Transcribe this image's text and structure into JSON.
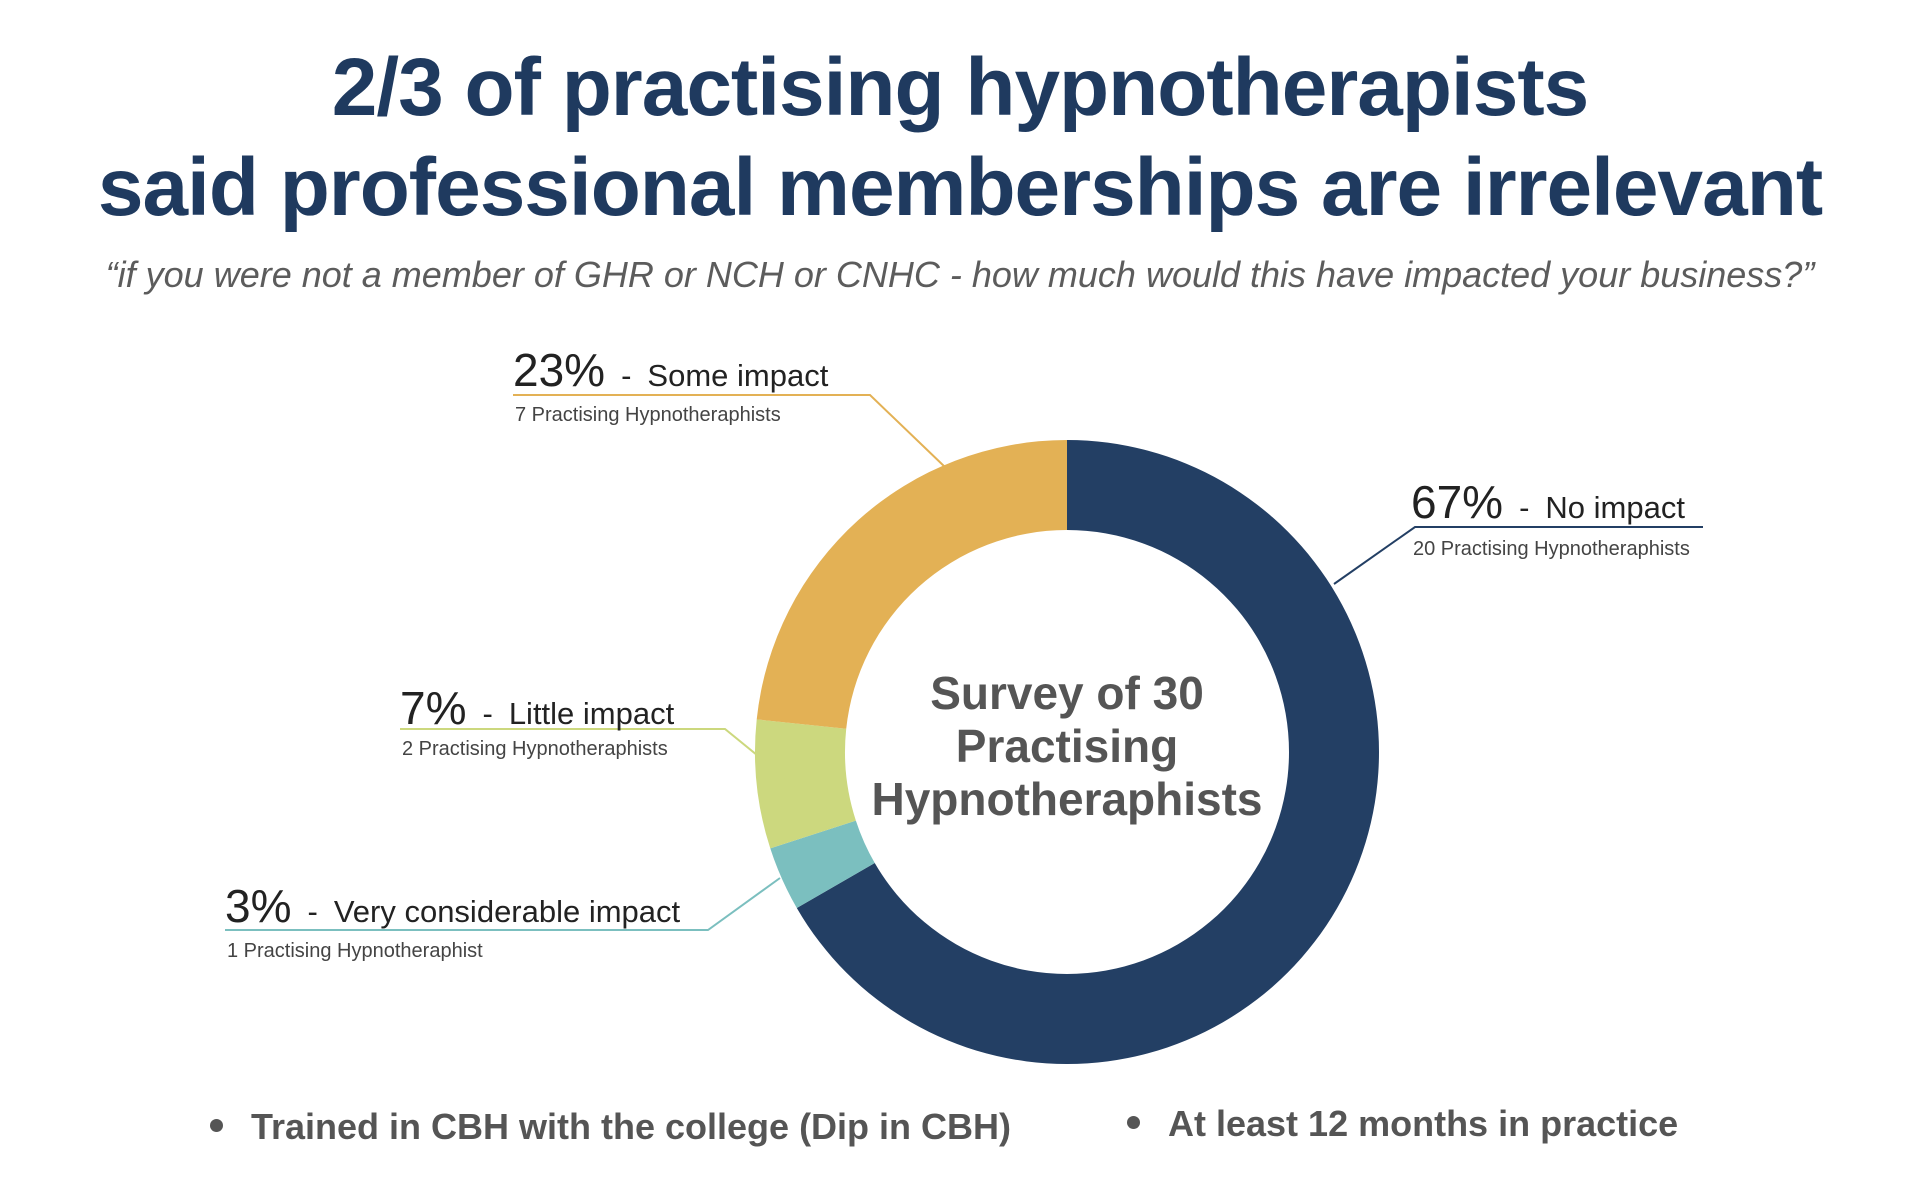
{
  "header": {
    "title_line1": "2/3 of practising hypnotherapists",
    "title_line2": "said professional memberships are irrelevant",
    "subtitle": "“if you were not a member of GHR or NCH or CNHC - how much would this have impacted your business?”"
  },
  "chart_data": {
    "type": "pie",
    "variant": "donut",
    "title": "2/3 of practising hypnotherapists said professional memberships are irrelevant",
    "center_text": [
      "Survey of 30",
      "Practising",
      "Hypnotheraphists"
    ],
    "total": 30,
    "slices": [
      {
        "key": "no",
        "percent": "67%",
        "label": "No impact",
        "count": 20,
        "count_text": "20 Practising Hypnotheraphists",
        "color": "#233f64"
      },
      {
        "key": "very",
        "percent": "3%",
        "label": "Very considerable impact",
        "count": 1,
        "count_text": "1 Practising Hypnotheraphist",
        "color": "#7bbfbf"
      },
      {
        "key": "little",
        "percent": "7%",
        "label": "Little impact",
        "count": 2,
        "count_text": "2 Practising Hypnotheraphists",
        "color": "#ccd87e"
      },
      {
        "key": "some",
        "percent": "23%",
        "label": "Some impact",
        "count": 7,
        "count_text": "7 Practising Hypnotheraphists",
        "color": "#e3b155"
      }
    ]
  },
  "footer": {
    "bullet1": "Trained in CBH with the college (Dip in CBH)",
    "bullet2": "At least 12 months in practice"
  }
}
